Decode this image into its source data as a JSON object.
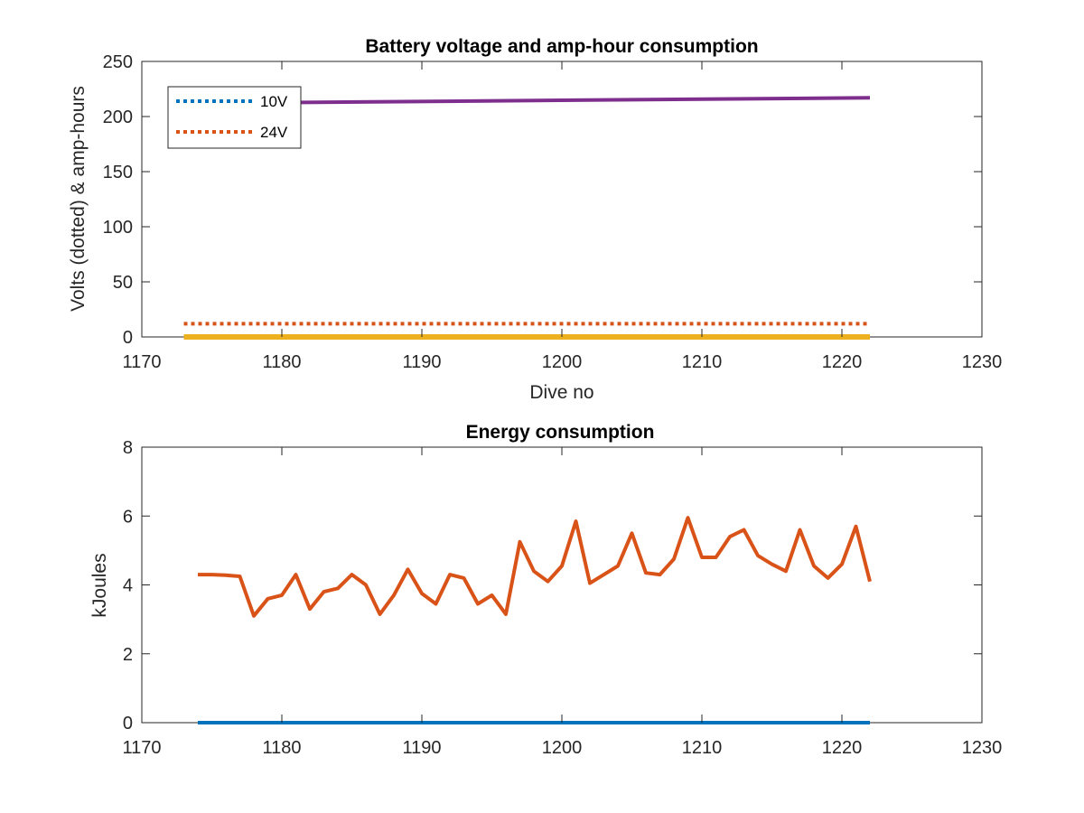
{
  "chart_data": [
    {
      "type": "line",
      "title": "Battery voltage and amp-hour consumption",
      "xlabel": "Dive no",
      "ylabel": "Volts (dotted) & amp-hours",
      "xlim": [
        1170,
        1230
      ],
      "ylim": [
        0,
        250
      ],
      "xticks": [
        "1170",
        "1180",
        "1190",
        "1200",
        "1210",
        "1220",
        "1230"
      ],
      "yticks": [
        "0",
        "50",
        "100",
        "150",
        "200",
        "250"
      ],
      "legend_position": "top-left",
      "series": [
        {
          "name": "10V",
          "style": "dotted",
          "color": "#0072BD",
          "x": [
            1173,
            1222
          ],
          "y": [
            0,
            0
          ]
        },
        {
          "name": "24V",
          "style": "dotted",
          "color": "#D95319",
          "x": [
            1173,
            1222
          ],
          "y": [
            12,
            12
          ]
        },
        {
          "style": "solid",
          "color": "#EDB120",
          "x": [
            1173,
            1222
          ],
          "y": [
            0,
            0
          ]
        },
        {
          "style": "solid",
          "color": "#7E2F8E",
          "x": [
            1173,
            1222
          ],
          "y": [
            212,
            217
          ]
        }
      ]
    },
    {
      "type": "line",
      "title": "Energy consumption",
      "xlabel": "",
      "ylabel": "kJoules",
      "xlim": [
        1170,
        1230
      ],
      "ylim": [
        0,
        8
      ],
      "xticks": [
        "1170",
        "1180",
        "1190",
        "1200",
        "1210",
        "1220",
        "1230"
      ],
      "yticks": [
        "0",
        "2",
        "4",
        "6",
        "8"
      ],
      "series": [
        {
          "style": "solid",
          "color": "#0072BD",
          "x": [
            1174,
            1222
          ],
          "y": [
            0,
            0
          ]
        },
        {
          "style": "solid",
          "color": "#D95319",
          "x": [
            1174,
            1175,
            1176,
            1177,
            1178,
            1179,
            1180,
            1181,
            1182,
            1183,
            1184,
            1185,
            1186,
            1187,
            1188,
            1189,
            1190,
            1191,
            1192,
            1193,
            1194,
            1195,
            1196,
            1197,
            1198,
            1199,
            1200,
            1201,
            1202,
            1203,
            1204,
            1205,
            1206,
            1207,
            1208,
            1209,
            1210,
            1211,
            1212,
            1213,
            1214,
            1215,
            1216,
            1217,
            1218,
            1219,
            1220,
            1221,
            1222
          ],
          "y": [
            4.3,
            4.3,
            4.28,
            4.25,
            3.1,
            3.6,
            3.7,
            4.3,
            3.3,
            3.8,
            3.9,
            4.3,
            4.0,
            3.15,
            3.7,
            4.45,
            3.75,
            3.45,
            4.3,
            4.2,
            3.45,
            3.7,
            3.15,
            5.25,
            4.4,
            4.1,
            4.55,
            5.85,
            4.05,
            4.3,
            4.55,
            5.5,
            4.35,
            4.3,
            4.75,
            5.95,
            4.8,
            4.8,
            5.4,
            5.6,
            4.85,
            4.6,
            4.4,
            5.6,
            4.55,
            4.2,
            4.6,
            5.7,
            4.1
          ]
        }
      ]
    }
  ]
}
